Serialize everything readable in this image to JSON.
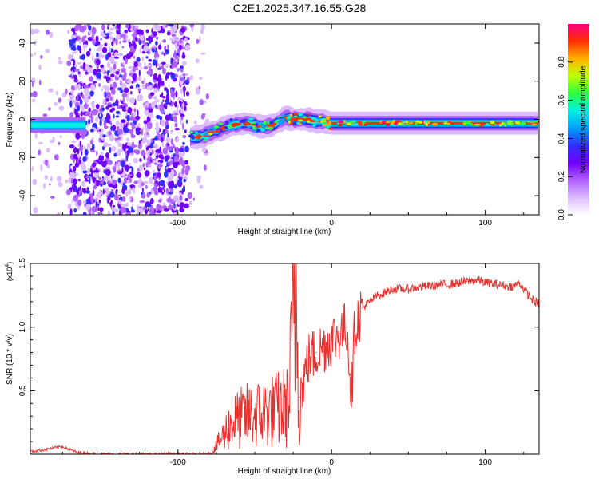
{
  "figure": {
    "title": "C2E1.2025.347.16.55.G28"
  },
  "colors": {
    "trace": "#e8302c",
    "axis": "#000000",
    "colormap": [
      "#ffffff",
      "#dcbcff",
      "#b060ff",
      "#7000ff",
      "#3030ff",
      "#00a0ff",
      "#00f0e0",
      "#30ff40",
      "#c0ff00",
      "#ffb000",
      "#ff3000",
      "#ff0080"
    ]
  },
  "chart_data": [
    {
      "type": "heatmap",
      "name": "spectrogram",
      "title": "",
      "xlabel": "Height of straight line (km)",
      "ylabel": "Frequency (Hz)",
      "xlim": [
        -196,
        135
      ],
      "ylim": [
        -50,
        50
      ],
      "x_ticks": [
        -100,
        0,
        100
      ],
      "x_ticklabels": [
        "-100",
        "0",
        "100"
      ],
      "y_ticks": [
        -40,
        -20,
        0,
        20,
        40
      ],
      "y_ticklabels": [
        "-40",
        "-20",
        "0",
        "20",
        "40"
      ],
      "ridge": {
        "x": [
          -196,
          -180,
          -165,
          -150,
          -130,
          -110,
          -95,
          -85,
          -75,
          -65,
          -55,
          -45,
          -38,
          -30,
          -25,
          -20,
          -15,
          -10,
          -5,
          0,
          10,
          20,
          40,
          60,
          80,
          90,
          100,
          120,
          135
        ],
        "freq": [
          -3,
          -3,
          -3,
          -4,
          -5,
          -8,
          -10,
          -9,
          -6,
          -3,
          -2,
          -4,
          -3,
          1,
          0,
          0,
          0,
          -1,
          -1,
          -2,
          -2,
          -2,
          -2,
          -2,
          -2,
          -2,
          -2,
          -2,
          -2
        ]
      },
      "noise_region": {
        "x_range": [
          -196,
          -80
        ],
        "dense_range": [
          -170,
          -93
        ]
      }
    },
    {
      "type": "line",
      "name": "snr",
      "title": "",
      "xlabel": "Height of straight line (km)",
      "ylabel": "SNR (10 * v/v)",
      "scale_label": "(x10",
      "scale_exponent": "4",
      "xlim": [
        -196,
        135
      ],
      "ylim": [
        0,
        1.5
      ],
      "x_ticks": [
        -100,
        0,
        100
      ],
      "x_ticklabels": [
        "-100",
        "0",
        "100"
      ],
      "y_ticks": [
        0.5,
        1.0,
        1.5
      ],
      "y_ticklabels": [
        "0.5",
        "1.0",
        "1.5"
      ],
      "series": [
        {
          "name": "SNR",
          "x": [
            -196,
            -185,
            -175,
            -165,
            -150,
            -120,
            -100,
            -85,
            -78,
            -72,
            -65,
            -55,
            -45,
            -35,
            -28,
            -23,
            -21,
            -19,
            -15,
            -10,
            -5,
            0,
            5,
            10,
            13,
            15,
            20,
            25,
            30,
            40,
            50,
            60,
            70,
            80,
            88,
            95,
            100,
            110,
            118,
            122,
            125,
            130,
            135
          ],
          "y": [
            0.02,
            0.04,
            0.06,
            0.01,
            0.0,
            0.0,
            0.0,
            0.0,
            0.01,
            0.12,
            0.25,
            0.3,
            0.32,
            0.35,
            0.38,
            1.4,
            0.45,
            0.55,
            0.75,
            0.8,
            0.85,
            0.9,
            0.95,
            1.0,
            0.45,
            1.0,
            1.15,
            1.2,
            1.25,
            1.3,
            1.3,
            1.32,
            1.33,
            1.34,
            1.36,
            1.37,
            1.35,
            1.33,
            1.32,
            1.35,
            1.3,
            1.22,
            1.18
          ]
        }
      ]
    }
  ],
  "colorbar": {
    "label": "Normalized spectral amplitude",
    "range": [
      0,
      1
    ],
    "ticks": [
      0.0,
      0.2,
      0.4,
      0.6,
      0.8
    ],
    "ticklabels": [
      "0.0",
      "0.2",
      "0.4",
      "0.6",
      "0.8"
    ]
  }
}
